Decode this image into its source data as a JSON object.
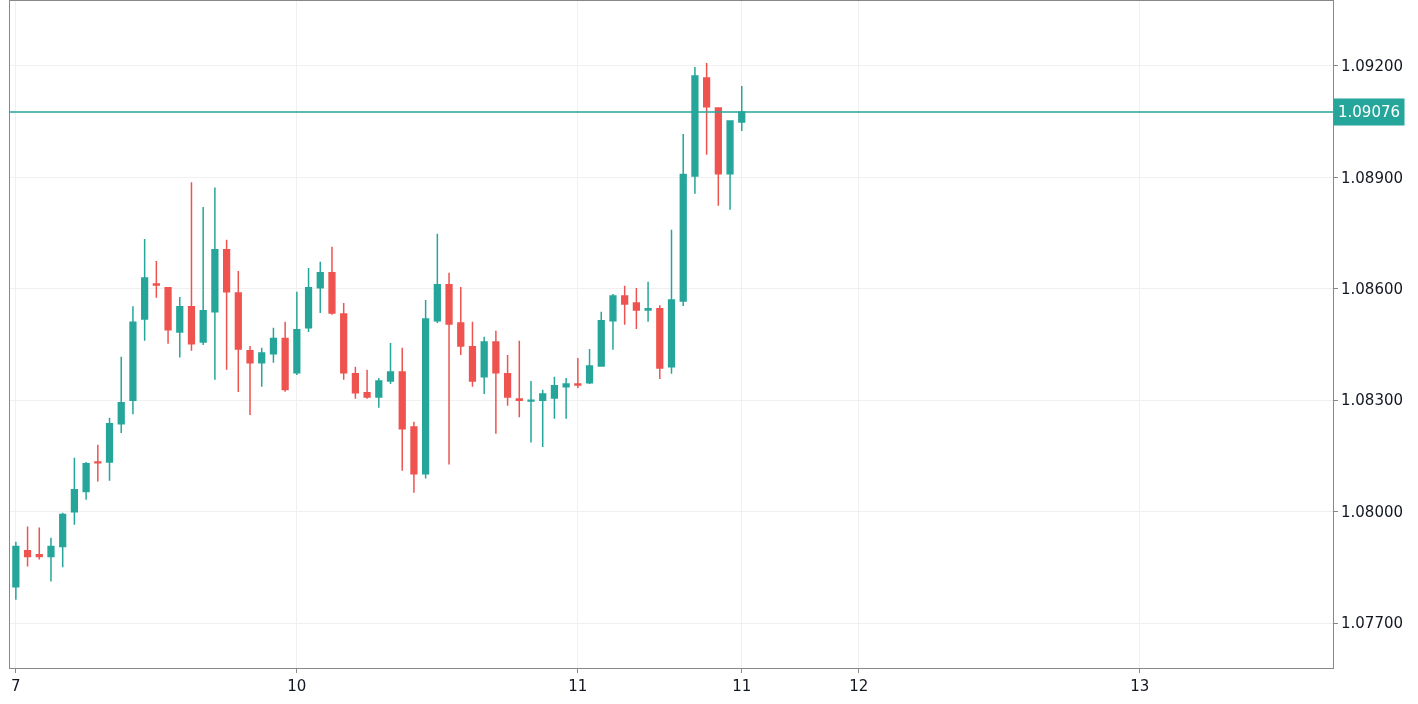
{
  "chart_data": {
    "type": "candlestick",
    "categories": [
      "7",
      null,
      null,
      null,
      null,
      null,
      null,
      null,
      null,
      null,
      null,
      null,
      null,
      null,
      null,
      null,
      null,
      null,
      null,
      null,
      null,
      null,
      null,
      null,
      "10",
      null,
      null,
      null,
      null,
      null,
      null,
      null,
      null,
      null,
      null,
      null,
      null,
      null,
      null,
      null,
      null,
      null,
      null,
      null,
      null,
      null,
      null,
      null,
      "11",
      null,
      null,
      null,
      null,
      null,
      null,
      null,
      null,
      null,
      null,
      null,
      null,
      null,
      "11",
      null,
      null,
      null,
      null,
      null,
      null,
      null,
      null,
      null,
      "12",
      null,
      null,
      null,
      null,
      null,
      null,
      null,
      null,
      null,
      null,
      null,
      null,
      null,
      null,
      null,
      null,
      null,
      null,
      null,
      null,
      null,
      null,
      null,
      "13",
      null,
      null,
      null,
      null,
      null,
      null,
      null,
      null,
      null,
      null,
      null,
      null,
      null,
      null,
      null,
      null
    ],
    "ohlc": [
      [
        1.07798,
        1.07919,
        1.07763,
        1.07906
      ],
      [
        1.07895,
        1.0796,
        1.07852,
        1.07879
      ],
      [
        1.07884,
        1.07957,
        1.07871,
        1.07879
      ],
      [
        1.07879,
        1.0793,
        1.07812,
        1.07906
      ],
      [
        1.07906,
        1.07997,
        1.0785,
        1.07992
      ],
      [
        1.08,
        1.08145,
        1.07965,
        1.08059
      ],
      [
        1.08054,
        1.08134,
        1.08032,
        1.08129
      ],
      [
        1.08134,
        1.0818,
        1.08081,
        1.08132
      ],
      [
        1.08134,
        1.08253,
        1.08083,
        1.08237
      ],
      [
        1.08237,
        1.08417,
        1.08212,
        1.08293
      ],
      [
        1.083,
        1.08553,
        1.08262,
        1.0851
      ],
      [
        1.08519,
        1.08734,
        1.0846,
        1.08629
      ],
      [
        1.08613,
        1.08675,
        1.08576,
        1.0861
      ],
      [
        1.08603,
        1.08605,
        1.08452,
        1.0849
      ],
      [
        1.08484,
        1.08578,
        1.08415,
        1.08552
      ],
      [
        1.08552,
        1.08887,
        1.08433,
        1.08452
      ],
      [
        1.08457,
        1.0882,
        1.08449,
        1.08541
      ],
      [
        1.08538,
        1.08873,
        1.08355,
        1.08705
      ],
      [
        1.08705,
        1.08732,
        1.08382,
        1.08592
      ],
      [
        1.08589,
        1.08648,
        1.08322,
        1.08438
      ],
      [
        1.08433,
        1.08446,
        1.0826,
        1.08401
      ],
      [
        1.08401,
        1.08441,
        1.08336,
        1.08427
      ],
      [
        1.08425,
        1.08495,
        1.08401,
        1.08466
      ],
      [
        1.08466,
        1.08511,
        1.08323,
        1.08329
      ],
      [
        1.08374,
        1.08592,
        1.08368,
        1.0849
      ],
      [
        1.08495,
        1.08656,
        1.08484,
        1.08603
      ],
      [
        1.08603,
        1.08673,
        1.08535,
        1.08643
      ],
      [
        1.08643,
        1.08713,
        1.0853,
        1.08535
      ],
      [
        1.08532,
        1.08562,
        1.08355,
        1.08374
      ],
      [
        1.08371,
        1.0839,
        1.08304,
        1.0832
      ],
      [
        1.0832,
        1.08382,
        1.08304,
        1.08309
      ],
      [
        1.08309,
        1.0836,
        1.0828,
        1.08352
      ],
      [
        1.08352,
        1.08454,
        1.08344,
        1.08376
      ],
      [
        1.08376,
        1.08441,
        1.0811,
        1.08223
      ],
      [
        1.08228,
        1.08242,
        1.08051,
        1.08102
      ],
      [
        1.08102,
        1.0857,
        1.08089,
        1.08519
      ],
      [
        1.08514,
        1.08748,
        1.08508,
        1.08611
      ],
      [
        1.08611,
        1.08643,
        1.08127,
        1.08505
      ],
      [
        1.08508,
        1.08605,
        1.08422,
        1.08446
      ],
      [
        1.08444,
        1.08511,
        1.08336,
        1.08352
      ],
      [
        1.08363,
        1.08471,
        1.08317,
        1.08457
      ],
      [
        1.08457,
        1.08487,
        1.0821,
        1.08374
      ],
      [
        1.08371,
        1.08422,
        1.08285,
        1.08309
      ],
      [
        1.08303,
        1.0846,
        1.08254,
        1.083
      ],
      [
        1.08298,
        1.08352,
        1.08186,
        1.083
      ],
      [
        1.083,
        1.08328,
        1.08174,
        1.08317
      ],
      [
        1.08306,
        1.08363,
        1.0825,
        1.08339
      ],
      [
        1.08336,
        1.0836,
        1.0825,
        1.08344
      ],
      [
        1.08344,
        1.08414,
        1.08333,
        1.08341
      ],
      [
        1.08347,
        1.08438,
        1.08344,
        1.08392
      ],
      [
        1.08392,
        1.08538,
        1.08392,
        1.08514
      ],
      [
        1.08514,
        1.08586,
        1.08436,
        1.08581
      ],
      [
        1.08581,
        1.08608,
        1.08503,
        1.08559
      ],
      [
        1.08562,
        1.08602,
        1.08492,
        1.08543
      ],
      [
        1.08543,
        1.08619,
        1.08511,
        1.08546
      ],
      [
        1.08546,
        1.08556,
        1.08357,
        1.08387
      ],
      [
        1.0839,
        1.08759,
        1.08371,
        1.0857
      ],
      [
        1.08567,
        1.09017,
        1.08554,
        1.08908
      ],
      [
        1.08904,
        1.09197,
        1.08856,
        1.09173
      ],
      [
        1.09168,
        1.09208,
        1.08961,
        1.0909
      ],
      [
        1.09087,
        1.09087,
        1.08824,
        1.0891
      ],
      [
        1.0891,
        1.09052,
        1.08813,
        1.09052
      ],
      [
        1.09049,
        1.09146,
        1.09025,
        1.09076
      ],
      null,
      null,
      null,
      null,
      null,
      null,
      null,
      null,
      null,
      null,
      null,
      null,
      null,
      null,
      null,
      null,
      null,
      null,
      null,
      null,
      null,
      null,
      null,
      null,
      null,
      null,
      null,
      null,
      null,
      null,
      null,
      null,
      null,
      null,
      null,
      null,
      null,
      null,
      null,
      null,
      null,
      null,
      null,
      null,
      null,
      null,
      null,
      null,
      null,
      null
    ],
    "colors": [
      "#26a69a",
      "#ef5350",
      "#ef5350",
      "#26a69a",
      "#26a69a",
      "#26a69a",
      "#26a69a",
      "#ef5350",
      "#26a69a",
      "#26a69a",
      "#26a69a",
      "#26a69a",
      "#ef5350",
      "#ef5350",
      "#26a69a",
      "#ef5350",
      "#26a69a",
      "#26a69a",
      "#ef5350",
      "#ef5350",
      "#ef5350",
      "#26a69a",
      "#26a69a",
      "#ef5350",
      "#26a69a",
      "#26a69a",
      "#26a69a",
      "#ef5350",
      "#ef5350",
      "#ef5350",
      "#ef5350",
      "#26a69a",
      "#26a69a",
      "#ef5350",
      "#ef5350",
      "#26a69a",
      "#26a69a",
      "#ef5350",
      "#ef5350",
      "#ef5350",
      "#26a69a",
      "#ef5350",
      "#ef5350",
      "#ef5350",
      "#26a69a",
      "#26a69a",
      "#26a69a",
      "#26a69a",
      "#ef5350",
      "#26a69a",
      "#26a69a",
      "#26a69a",
      "#ef5350",
      "#ef5350",
      "#26a69a",
      "#ef5350",
      "#26a69a",
      "#26a69a",
      "#26a69a",
      "#ef5350",
      "#ef5350",
      "#26a69a",
      "#26a69a",
      null,
      null,
      null,
      null,
      null,
      null,
      null,
      null,
      null,
      null,
      null,
      null,
      null,
      null,
      null,
      null,
      null,
      null,
      null,
      null,
      null,
      null,
      null,
      null,
      null,
      null,
      null,
      null,
      null,
      null,
      null,
      null,
      null,
      null,
      null,
      null,
      null,
      null,
      null,
      null,
      null,
      null,
      null,
      null,
      null,
      null,
      null,
      null,
      null,
      null
    ],
    "ylim": [
      1.07579,
      1.09375
    ],
    "yticks": [
      {
        "value": 1.077,
        "label": "1.07700"
      },
      {
        "value": 1.08,
        "label": "1.08000"
      },
      {
        "value": 1.083,
        "label": "1.08300"
      },
      {
        "value": 1.086,
        "label": "1.08600"
      },
      {
        "value": 1.089,
        "label": "1.08900"
      },
      {
        "value": 1.092,
        "label": "1.09200"
      }
    ],
    "ref_lines": [
      {
        "axis": "y",
        "value": 1.09076,
        "label": "1.09076",
        "color": "#26a69a"
      }
    ],
    "grid": true
  }
}
